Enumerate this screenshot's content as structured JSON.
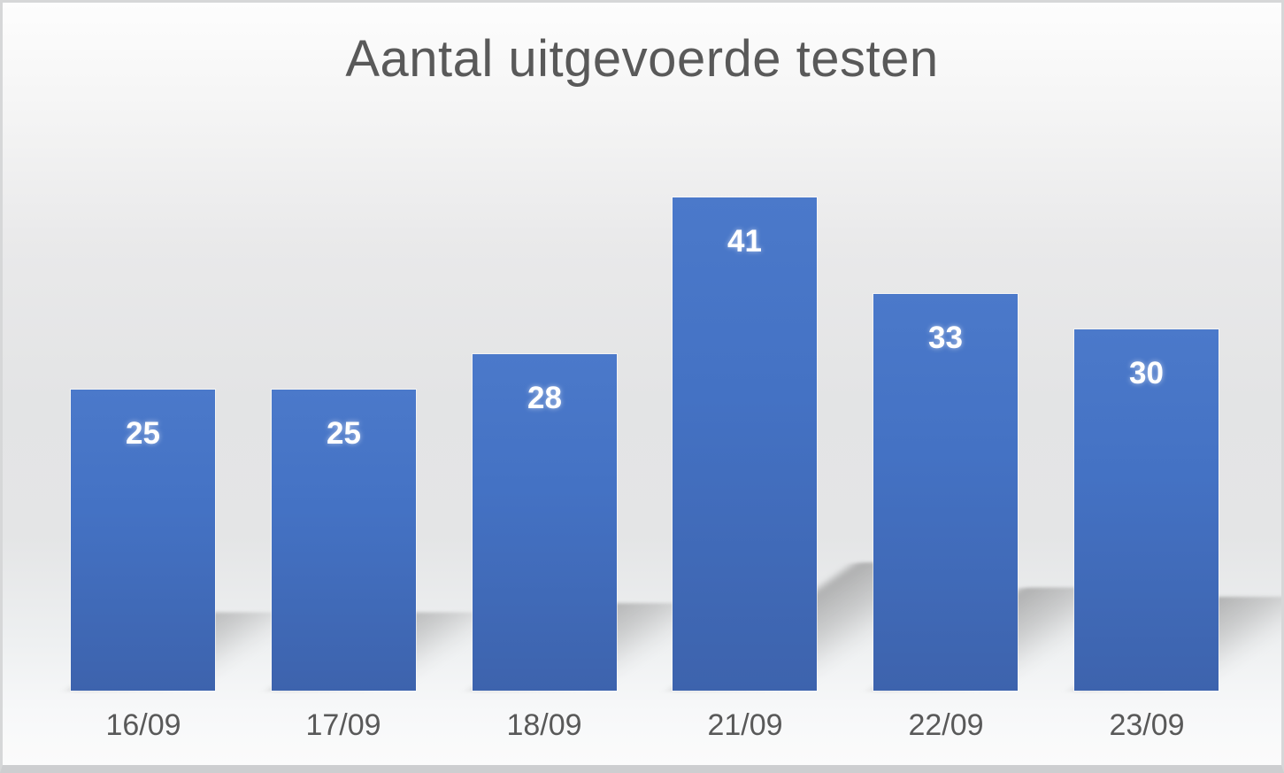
{
  "chart_data": {
    "type": "bar",
    "title": "Aantal uitgevoerde testen",
    "categories": [
      "16/09",
      "17/09",
      "18/09",
      "21/09",
      "22/09",
      "23/09"
    ],
    "values": [
      25,
      25,
      28,
      41,
      33,
      30
    ],
    "xlabel": "",
    "ylabel": "",
    "ylim": [
      0,
      45
    ],
    "gridlines": false,
    "axes_visible": false,
    "legend_position": "none",
    "data_labels": "inside-end",
    "colors": {
      "bar_fill": "#4472C4",
      "bar_fill_top": "#4b79ca",
      "bar_fill_bottom": "#3d63ad",
      "data_label": "#ffffff",
      "title_text": "#595959",
      "axis_label_text": "#595959",
      "frame_border": "#d6d7d8",
      "shadow": "#8c8c8c"
    },
    "effects": {
      "bar_shadow": "perspective lower-right",
      "background": "vertical white-gray-white gradient"
    }
  }
}
